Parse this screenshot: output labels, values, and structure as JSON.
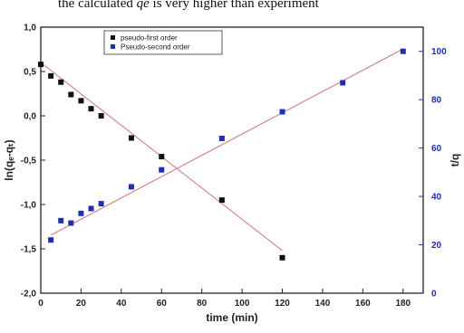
{
  "caption": {
    "prefix": "the calculated",
    "variable": "qe",
    "suffix": "is very higher than experiment"
  },
  "chart_data": {
    "type": "scatter",
    "xlabel": "time (min)",
    "ylabel_left": "ln(qₑ-qₜ)",
    "ylabel_right": "t/q",
    "xlim": [
      0,
      190
    ],
    "ylim_left": [
      -2.0,
      1.0
    ],
    "ylim_right": [
      0,
      110
    ],
    "x_ticks": [
      "0",
      "20",
      "40",
      "60",
      "80",
      "100",
      "120",
      "140",
      "160",
      "180"
    ],
    "y_left_ticks": [
      "-2,0",
      "-1,5",
      "-1,0",
      "-0,5",
      "0,0",
      "0,5",
      "1,0"
    ],
    "y_right_ticks": [
      "0",
      "20",
      "40",
      "60",
      "80",
      "100"
    ],
    "legend_position": "top-left",
    "series": [
      {
        "name": "pseudo-first order",
        "axis": "left",
        "color": "#111111",
        "x": [
          0,
          5,
          10,
          15,
          20,
          25,
          30,
          45,
          60,
          90,
          120
        ],
        "y": [
          0.58,
          0.45,
          0.38,
          0.24,
          0.17,
          0.08,
          0.0,
          -0.25,
          -0.46,
          -0.95,
          -1.6
        ],
        "fit_color": "#d08a8a",
        "fit": [
          [
            0,
            0.6
          ],
          [
            120,
            -1.52
          ]
        ]
      },
      {
        "name": "Pseudo-second order",
        "axis": "right",
        "color": "#1f2fb0",
        "x": [
          5,
          10,
          15,
          20,
          25,
          30,
          45,
          60,
          90,
          120,
          150,
          180
        ],
        "y": [
          22,
          30,
          29,
          33,
          35,
          37,
          44,
          51,
          64,
          75,
          87,
          100
        ],
        "fit_color": "#d08a8a",
        "fit": [
          [
            5,
            24
          ],
          [
            180,
            101
          ]
        ]
      }
    ]
  }
}
